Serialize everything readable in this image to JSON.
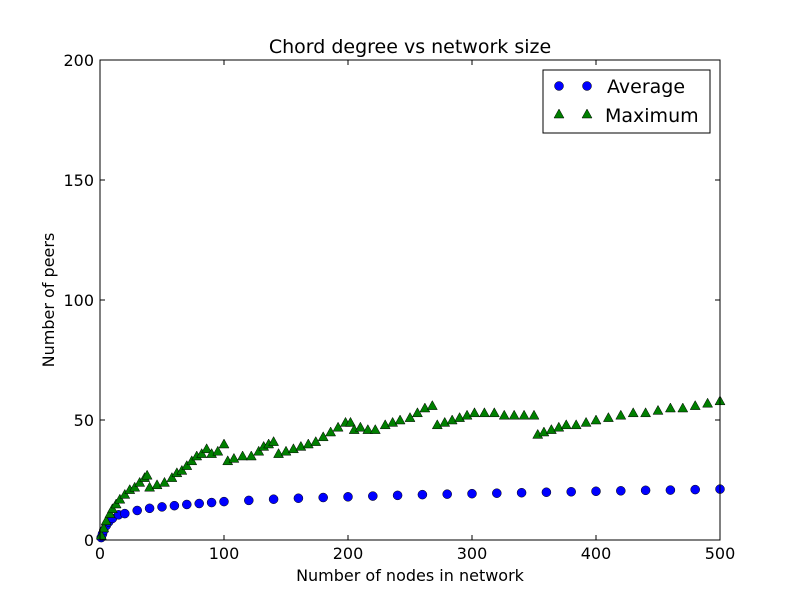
{
  "chart_data": {
    "type": "scatter",
    "title": "Chord degree vs network size",
    "xlabel": "Number of nodes in network",
    "ylabel": "Number of peers",
    "xlim": [
      0,
      500
    ],
    "ylim": [
      0,
      200
    ],
    "xticks": [
      0,
      100,
      200,
      300,
      400,
      500
    ],
    "yticks": [
      0,
      50,
      100,
      150,
      200
    ],
    "grid": false,
    "legend_position": "top-right",
    "series": [
      {
        "name": "Average",
        "marker": "circle",
        "color": "#0000ff",
        "points": [
          [
            1,
            1
          ],
          [
            2,
            2.5
          ],
          [
            3,
            4
          ],
          [
            5,
            6
          ],
          [
            7,
            7.5
          ],
          [
            10,
            9
          ],
          [
            15,
            10.5
          ],
          [
            20,
            11
          ],
          [
            30,
            12.3
          ],
          [
            40,
            13.2
          ],
          [
            50,
            13.8
          ],
          [
            60,
            14.3
          ],
          [
            70,
            14.8
          ],
          [
            80,
            15.2
          ],
          [
            90,
            15.6
          ],
          [
            100,
            16
          ],
          [
            120,
            16.5
          ],
          [
            140,
            17
          ],
          [
            160,
            17.4
          ],
          [
            180,
            17.7
          ],
          [
            200,
            18
          ],
          [
            220,
            18.3
          ],
          [
            240,
            18.6
          ],
          [
            260,
            18.9
          ],
          [
            280,
            19.1
          ],
          [
            300,
            19.3
          ],
          [
            320,
            19.5
          ],
          [
            340,
            19.7
          ],
          [
            360,
            19.9
          ],
          [
            380,
            20.1
          ],
          [
            400,
            20.3
          ],
          [
            420,
            20.5
          ],
          [
            440,
            20.7
          ],
          [
            460,
            20.8
          ],
          [
            480,
            21
          ],
          [
            500,
            21.2
          ]
        ]
      },
      {
        "name": "Maximum",
        "marker": "triangle",
        "color": "#007f00",
        "points": [
          [
            1,
            2
          ],
          [
            3,
            5
          ],
          [
            5,
            8
          ],
          [
            8,
            11
          ],
          [
            10,
            13
          ],
          [
            13,
            15
          ],
          [
            16,
            17
          ],
          [
            20,
            19
          ],
          [
            24,
            21
          ],
          [
            28,
            22
          ],
          [
            32,
            24
          ],
          [
            36,
            26
          ],
          [
            38,
            27
          ],
          [
            40,
            22
          ],
          [
            46,
            23
          ],
          [
            52,
            24
          ],
          [
            58,
            26
          ],
          [
            62,
            28
          ],
          [
            66,
            29
          ],
          [
            70,
            31
          ],
          [
            74,
            33
          ],
          [
            78,
            35
          ],
          [
            82,
            36
          ],
          [
            86,
            38
          ],
          [
            90,
            36
          ],
          [
            95,
            37
          ],
          [
            100,
            40
          ],
          [
            103,
            33
          ],
          [
            108,
            34
          ],
          [
            115,
            35
          ],
          [
            122,
            35
          ],
          [
            128,
            37
          ],
          [
            132,
            39
          ],
          [
            136,
            40
          ],
          [
            140,
            41
          ],
          [
            144,
            36
          ],
          [
            150,
            37
          ],
          [
            156,
            38
          ],
          [
            162,
            39
          ],
          [
            168,
            40
          ],
          [
            174,
            41
          ],
          [
            180,
            43
          ],
          [
            186,
            45
          ],
          [
            192,
            47
          ],
          [
            198,
            49
          ],
          [
            202,
            49
          ],
          [
            205,
            46
          ],
          [
            210,
            47
          ],
          [
            216,
            46
          ],
          [
            222,
            46
          ],
          [
            230,
            48
          ],
          [
            236,
            49
          ],
          [
            242,
            50
          ],
          [
            250,
            51
          ],
          [
            256,
            53
          ],
          [
            262,
            55
          ],
          [
            268,
            56
          ],
          [
            272,
            48
          ],
          [
            278,
            49
          ],
          [
            284,
            50
          ],
          [
            290,
            51
          ],
          [
            296,
            52
          ],
          [
            302,
            53
          ],
          [
            310,
            53
          ],
          [
            318,
            53
          ],
          [
            326,
            52
          ],
          [
            334,
            52
          ],
          [
            342,
            52
          ],
          [
            350,
            52
          ],
          [
            353,
            44
          ],
          [
            358,
            45
          ],
          [
            364,
            46
          ],
          [
            370,
            47
          ],
          [
            376,
            48
          ],
          [
            384,
            48
          ],
          [
            392,
            49
          ],
          [
            400,
            50
          ],
          [
            410,
            51
          ],
          [
            420,
            52
          ],
          [
            430,
            53
          ],
          [
            440,
            53
          ],
          [
            450,
            54
          ],
          [
            460,
            55
          ],
          [
            470,
            55
          ],
          [
            480,
            56
          ],
          [
            490,
            57
          ],
          [
            500,
            58
          ]
        ]
      }
    ]
  }
}
